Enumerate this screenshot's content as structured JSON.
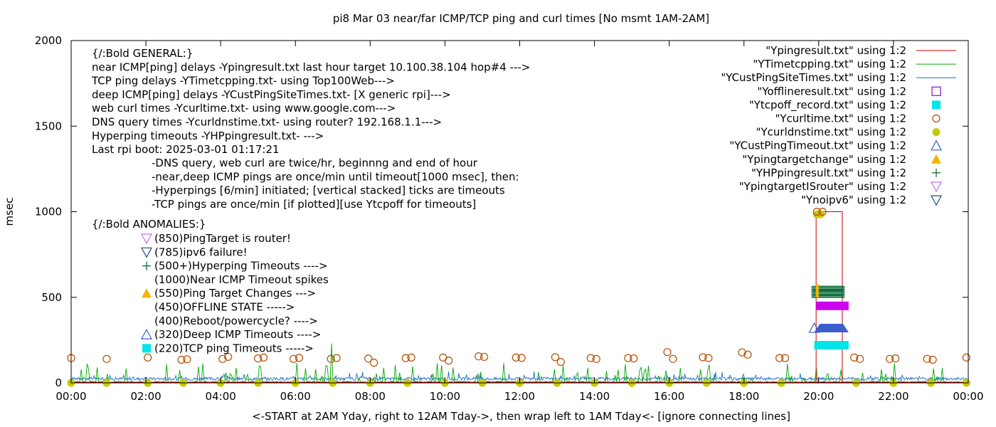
{
  "chart_data": {
    "type": "line",
    "title": "pi8 Mar 03  near/far ICMP/TCP ping and curl times [No msmt 1AM-2AM]",
    "xlabel": "<-START at 2AM Yday, right to 12AM Tday->, then wrap left to 1AM Tday<- [ignore connecting lines]",
    "ylabel": "msec",
    "xlim": [
      0,
      24
    ],
    "ylim": [
      0,
      2000
    ],
    "x_ticks": [
      "00:00",
      "02:00",
      "04:00",
      "06:00",
      "08:00",
      "10:00",
      "12:00",
      "14:00",
      "16:00",
      "18:00",
      "20:00",
      "22:00",
      "00:00"
    ],
    "y_ticks": [
      "0",
      "500",
      "1000",
      "1500",
      "2000"
    ],
    "grid": false,
    "legend_position": "top-right",
    "legend": [
      {
        "label": "\"Ypingresult.txt\" using 1:2",
        "color": "#cc0000",
        "symbol": "line"
      },
      {
        "label": "\"YTimetcpping.txt\" using 1:2",
        "color": "#00aa00",
        "symbol": "line"
      },
      {
        "label": "\"YCustPingSiteTimes.txt\" using 1:2",
        "color": "#1f6fbf",
        "symbol": "line"
      },
      {
        "label": "\"Yofflineresult.txt\" using 1:2",
        "color": "#9400d3",
        "symbol": "square-open"
      },
      {
        "label": "\"Ytcpoff_record.txt\" using 1:2",
        "color": "#00e5e5",
        "symbol": "square"
      },
      {
        "label": "\"Ycurltime.txt\" using 1:2",
        "color": "#b84c00",
        "symbol": "circle-open"
      },
      {
        "label": "\"Ycurldnstime.txt\" using 1:2",
        "color": "#c8c800",
        "symbol": "circle"
      },
      {
        "label": "\"YCustPingTimeout.txt\" using 1:2",
        "color": "#3a5fcd",
        "symbol": "triangle-open"
      },
      {
        "label": "\"Ypingtargetchange\" using 1:2",
        "color": "#f4b400",
        "symbol": "triangle"
      },
      {
        "label": "\"YHPpingresult.txt\" using 1:2",
        "color": "#006633",
        "symbol": "plus"
      },
      {
        "label": "\"YpingtargetISrouter\" using 1:2",
        "color": "#c070f0",
        "symbol": "triangle-down-open"
      },
      {
        "label": "\"Ynoipv6\" using 1:2",
        "color": "#1f4e8c",
        "symbol": "triangle-down-open"
      }
    ],
    "info_lines": [
      "{/:Bold GENERAL:}",
      "near ICMP[ping] delays -Ypingresult.txt last hour target 10.100.38.104 hop#4 --->",
      "TCP ping delays -YTimetcpping.txt- using Top100Web--->",
      "deep ICMP[ping] delays -YCustPingSiteTimes.txt- [X generic rpi]--->",
      "web curl times -Ycurltime.txt- using www.google.com--->",
      "DNS query times -Ycurldnstime.txt- using router? 192.168.1.1--->",
      "Hyperping timeouts -YHPpingresult.txt- --->",
      "Last rpi boot: 2025-03-01 01:17:21"
    ],
    "note_lines": [
      "-DNS query, web curl are twice/hr, beginnng and end of hour",
      "-near,deep ICMP pings are once/min until timeout[1000 msec], then:",
      "  -Hyperpings [6/min] initiated; [vertical stacked] ticks are timeouts",
      "-TCP pings are once/min [if plotted][use Ytcpoff for timeouts]"
    ],
    "anomalies_title": "{/:Bold ANOMALIES:}",
    "anomalies": [
      {
        "text": "(850)PingTarget is router!",
        "symbol": "triangle-down-open",
        "color": "#c070f0"
      },
      {
        "text": "(785)ipv6 failure!",
        "symbol": "triangle-down-open",
        "color": "#1f4e8c"
      },
      {
        "text": "(500+)Hyperping Timeouts ---->",
        "symbol": "plus",
        "color": "#006633"
      },
      {
        "text": "(1000)Near ICMP Timeout spikes",
        "symbol": "none",
        "color": ""
      },
      {
        "text": "(550)Ping Target Changes --->",
        "symbol": "triangle",
        "color": "#f4b400"
      },
      {
        "text": "(450)OFFLINE STATE ----->",
        "symbol": "none",
        "color": ""
      },
      {
        "text": "(400)Reboot/powercycle? ---->",
        "symbol": "none",
        "color": ""
      },
      {
        "text": "(320)Deep ICMP Timeouts ---->",
        "symbol": "triangle-open",
        "color": "#3a5fcd"
      },
      {
        "text": "(220)TCP ping Timeouts ----->",
        "symbol": "square",
        "color": "#00e5e5"
      }
    ],
    "series_markers": {
      "curl_times": {
        "color": "#b84c00",
        "points": [
          [
            0.0,
            145
          ],
          [
            0.95,
            140
          ],
          [
            2.05,
            148
          ],
          [
            2.95,
            135
          ],
          [
            3.1,
            138
          ],
          [
            4.05,
            140
          ],
          [
            4.2,
            152
          ],
          [
            5.0,
            143
          ],
          [
            5.15,
            148
          ],
          [
            5.95,
            140
          ],
          [
            6.1,
            146
          ],
          [
            6.95,
            140
          ],
          [
            7.1,
            145
          ],
          [
            7.95,
            142
          ],
          [
            8.1,
            118
          ],
          [
            8.95,
            145
          ],
          [
            9.1,
            148
          ],
          [
            9.95,
            148
          ],
          [
            10.1,
            130
          ],
          [
            10.9,
            155
          ],
          [
            11.05,
            152
          ],
          [
            11.9,
            148
          ],
          [
            12.05,
            146
          ],
          [
            12.95,
            150
          ],
          [
            13.1,
            122
          ],
          [
            13.9,
            145
          ],
          [
            14.05,
            140
          ],
          [
            14.9,
            145
          ],
          [
            15.05,
            143
          ],
          [
            15.95,
            180
          ],
          [
            16.1,
            140
          ],
          [
            16.9,
            150
          ],
          [
            17.05,
            145
          ],
          [
            17.95,
            178
          ],
          [
            18.1,
            165
          ],
          [
            18.95,
            145
          ],
          [
            19.1,
            145
          ],
          [
            19.95,
            1000
          ],
          [
            20.1,
            1000
          ],
          [
            20.95,
            148
          ],
          [
            21.1,
            140
          ],
          [
            21.9,
            140
          ],
          [
            22.05,
            143
          ],
          [
            22.9,
            140
          ],
          [
            23.05,
            135
          ],
          [
            23.95,
            148
          ]
        ]
      },
      "dns_times": {
        "color": "#c8c800",
        "points": [
          [
            0.0,
            0
          ],
          [
            0.95,
            0
          ],
          [
            2.05,
            0
          ],
          [
            3.0,
            0
          ],
          [
            4.0,
            0
          ],
          [
            5.0,
            0
          ],
          [
            6.0,
            0
          ],
          [
            7.0,
            0
          ],
          [
            8.0,
            0
          ],
          [
            9.0,
            0
          ],
          [
            10.0,
            0
          ],
          [
            11.0,
            0
          ],
          [
            12.0,
            0
          ],
          [
            13.0,
            0
          ],
          [
            14.0,
            0
          ],
          [
            15.0,
            0
          ],
          [
            16.0,
            0
          ],
          [
            17.0,
            0
          ],
          [
            18.0,
            0
          ],
          [
            19.0,
            0
          ],
          [
            19.95,
            985
          ],
          [
            20.05,
            985
          ],
          [
            21.0,
            0
          ],
          [
            22.0,
            0
          ],
          [
            23.0,
            0
          ],
          [
            23.95,
            0
          ]
        ]
      },
      "near_icmp_timeout_box": {
        "x_start": 19.93,
        "x_end": 20.63,
        "value": 1000,
        "color": "#cc0000"
      },
      "hyperping_timeouts": {
        "x_start": 19.88,
        "x_end": 20.63,
        "y_min": 500,
        "y_max": 570,
        "color": "#006633"
      },
      "offline_state": {
        "x_start": 19.93,
        "x_end": 20.8,
        "value": 450,
        "color": "#cc00ee"
      },
      "deep_icmp_timeouts": {
        "x_start": 19.88,
        "x_end": 20.8,
        "value": 320,
        "color": "#3a5fcd"
      },
      "tcp_timeouts": {
        "x_start": 19.88,
        "x_end": 20.8,
        "value": 220,
        "color": "#00e5e5"
      }
    }
  }
}
